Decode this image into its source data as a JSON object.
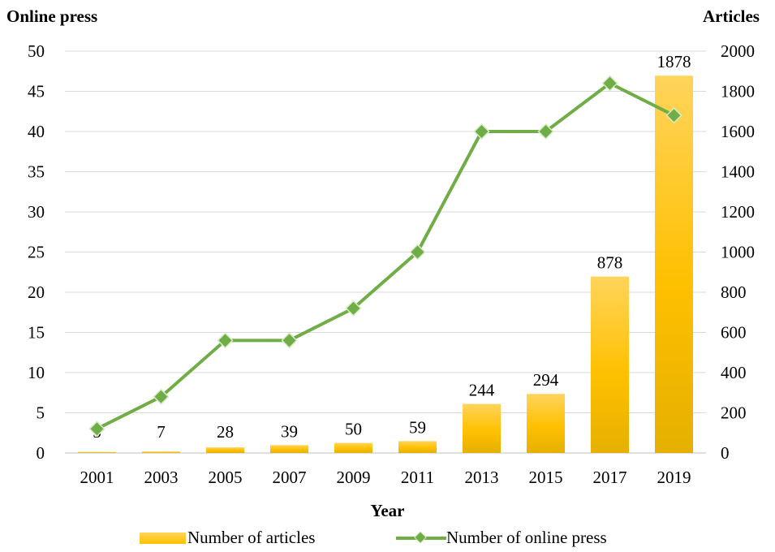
{
  "chart_data": {
    "type": "bar+line",
    "xlabel": "Year",
    "categories": [
      "2001",
      "2003",
      "2005",
      "2007",
      "2009",
      "2011",
      "2013",
      "2015",
      "2017",
      "2019"
    ],
    "left_axis": {
      "label": "Online press",
      "ylim": [
        0,
        50
      ],
      "ticks": [
        "0",
        "5",
        "10",
        "15",
        "20",
        "25",
        "30",
        "35",
        "40",
        "45",
        "50"
      ]
    },
    "right_axis": {
      "label": "Articles",
      "ylim": [
        0,
        2000
      ],
      "ticks": [
        "0",
        "200",
        "400",
        "600",
        "800",
        "1000",
        "1200",
        "1400",
        "1600",
        "1800",
        "2000"
      ]
    },
    "series": [
      {
        "name": "Number of articles",
        "kind": "bar",
        "axis": "right",
        "values": [
          5,
          7,
          28,
          39,
          50,
          59,
          244,
          294,
          878,
          1878
        ],
        "labels": [
          "5",
          "7",
          "28",
          "39",
          "50",
          "59",
          "244",
          "294",
          "878",
          "1878"
        ],
        "color": "#FFC000"
      },
      {
        "name": "Number of online press",
        "kind": "line",
        "axis": "left",
        "values": [
          3,
          7,
          14,
          14,
          18,
          25,
          40,
          40,
          46,
          42
        ],
        "color": "#70AD47"
      }
    ],
    "grid": true,
    "legend": "bottom"
  }
}
